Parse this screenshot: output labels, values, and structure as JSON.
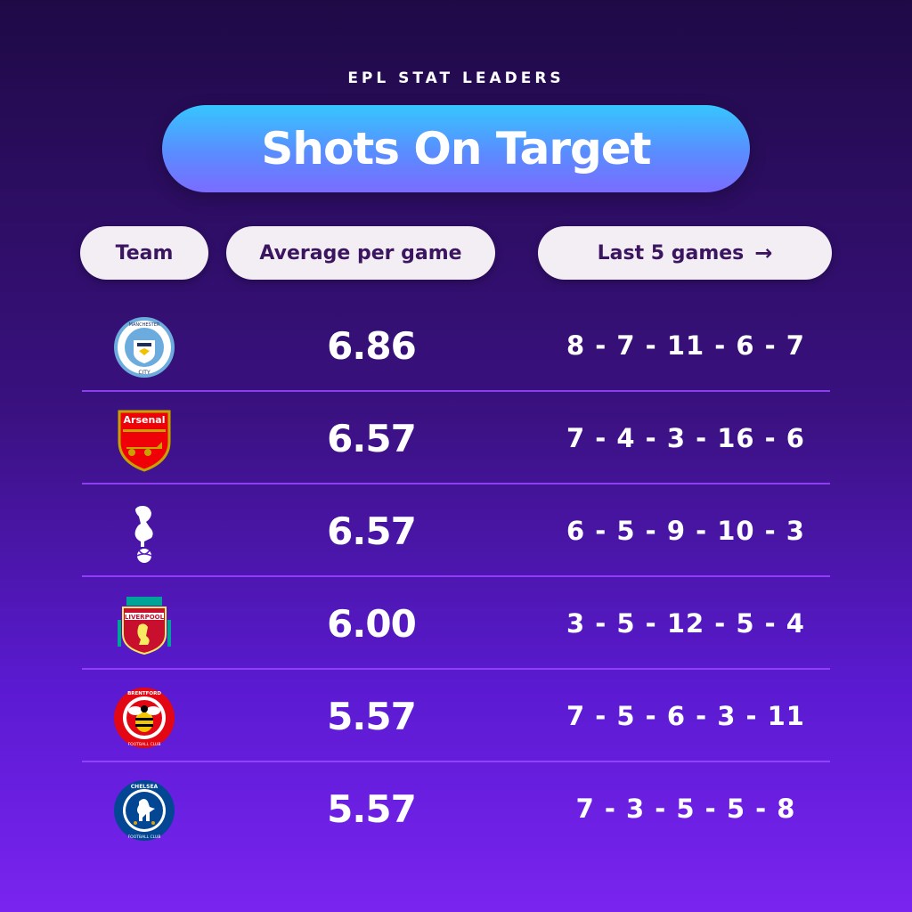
{
  "header": {
    "kicker": "EPL STAT LEADERS",
    "title": "Shots On Target"
  },
  "columns": {
    "team": "Team",
    "average": "Average per game",
    "last5": "Last 5 games",
    "last5_arrow": "→"
  },
  "rows": [
    {
      "team_icon": "manchester-city-crest",
      "average": "6.86",
      "last5": "8 - 7 - 11 - 6 - 7",
      "crest_text": [
        "MANCHESTER",
        "CITY"
      ]
    },
    {
      "team_icon": "arsenal-crest",
      "average": "6.57",
      "last5": "7 - 4 - 3 - 16 - 6",
      "crest_text": [
        "Arsenal"
      ]
    },
    {
      "team_icon": "tottenham-crest",
      "average": "6.57",
      "last5": "6 - 5 - 9 - 10 - 3",
      "crest_text": []
    },
    {
      "team_icon": "liverpool-crest",
      "average": "6.00",
      "last5": "3 - 5 - 12 - 5 - 4",
      "crest_text": [
        "LIVERPOOL"
      ]
    },
    {
      "team_icon": "brentford-crest",
      "average": "5.57",
      "last5": "7 - 5 - 6 - 3 - 11",
      "crest_text": [
        "BRENTFORD",
        "FOOTBALL CLUB"
      ]
    },
    {
      "team_icon": "chelsea-crest",
      "average": "5.57",
      "last5": "7 - 3 - 5 - 5 - 8",
      "crest_text": [
        "CHELSEA",
        "FOOTBALL CLUB"
      ]
    }
  ],
  "colors": {
    "background_top": "#1f0a46",
    "background_bottom": "#7a24f0",
    "title_pill": "#36c6ff",
    "header_pill": "#f2eef4",
    "header_text": "#3b1560",
    "divider": "#9a46ff"
  }
}
